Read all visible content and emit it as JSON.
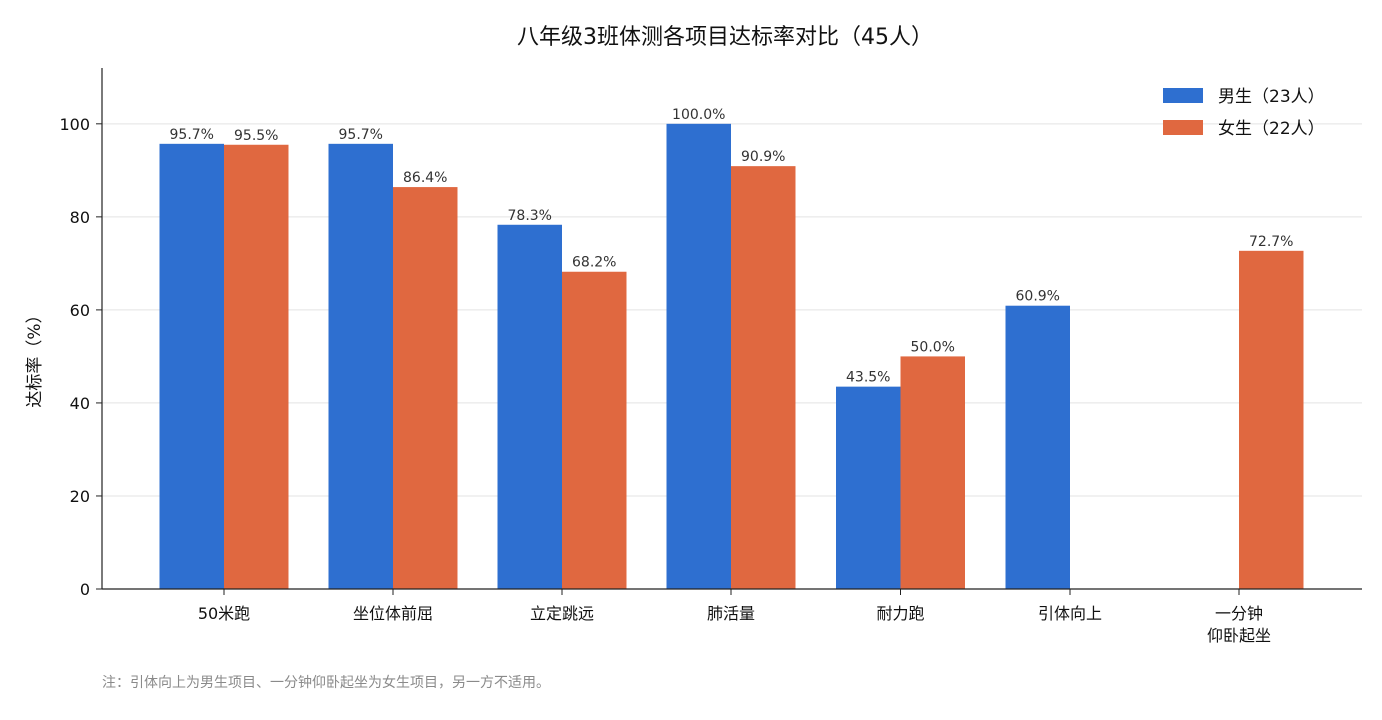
{
  "chart_data": {
    "type": "bar",
    "title": "八年级3班体测各项目达标率对比（45人）",
    "ylabel": "达标率（%）",
    "xlabel": "",
    "ylim": [
      0,
      112
    ],
    "yticks": [
      0,
      20,
      40,
      60,
      80,
      100
    ],
    "grid": "horizontal",
    "legend_position": "top-right",
    "categories": [
      "50米跑",
      "坐位体前屈",
      "立定跳远",
      "肺活量",
      "耐力跑",
      "引体向上",
      "一分钟\n仰卧起坐"
    ],
    "series": [
      {
        "name": "男生（23人）",
        "color": "#2e6fd0",
        "values": [
          95.7,
          95.7,
          78.3,
          100.0,
          43.5,
          60.9,
          null
        ],
        "labels": [
          "95.7%",
          "95.7%",
          "78.3%",
          "100.0%",
          "43.5%",
          "60.9%",
          null
        ]
      },
      {
        "name": "女生（22人）",
        "color": "#e06840",
        "values": [
          95.5,
          86.4,
          68.2,
          90.9,
          50.0,
          null,
          72.7
        ],
        "labels": [
          "95.5%",
          "86.4%",
          "68.2%",
          "90.9%",
          "50.0%",
          null,
          "72.7%"
        ]
      }
    ]
  },
  "footnote": "注：引体向上为男生项目、一分钟仰卧起坐为女生项目，另一方不适用。"
}
